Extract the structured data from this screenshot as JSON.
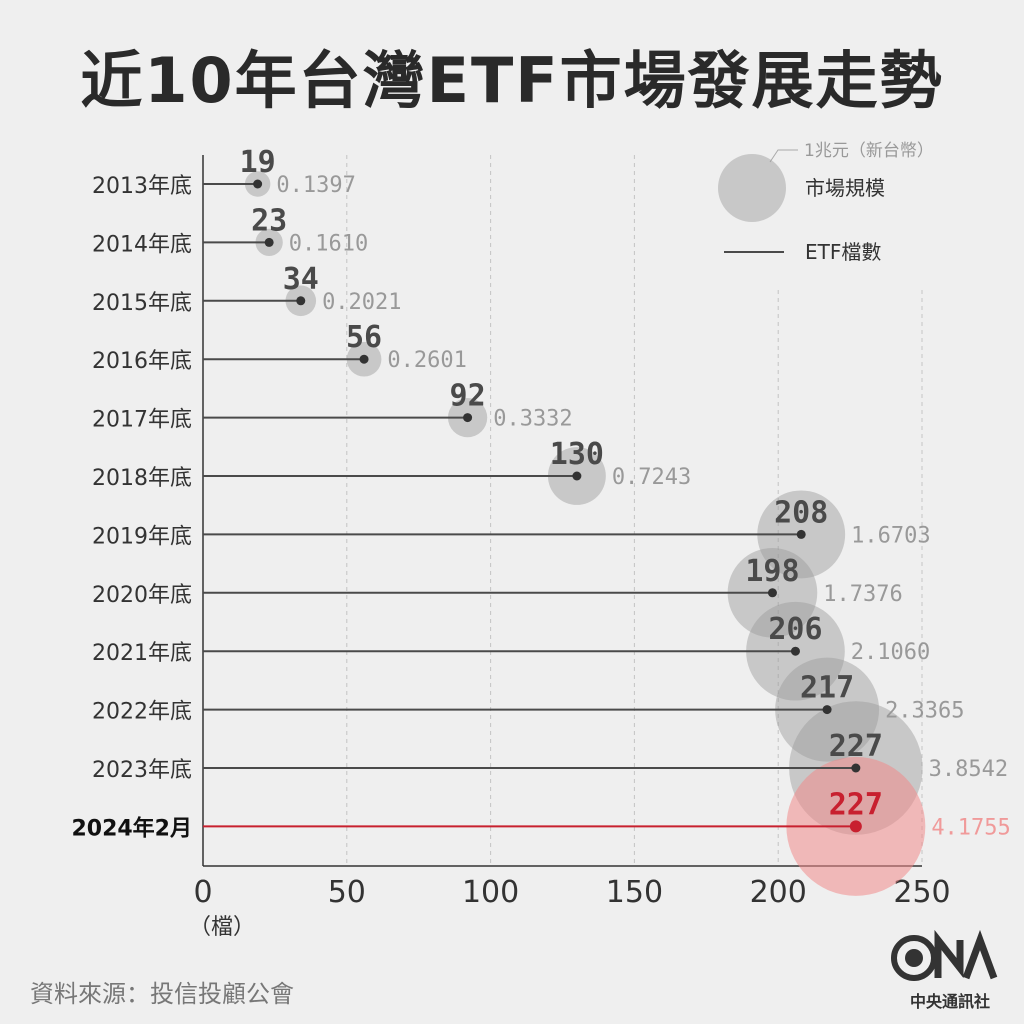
{
  "title": "近10年台灣ETF市場發展走勢",
  "source": "資料來源：投信投顧公會",
  "logo": {
    "text": "中央通訊社",
    "icon": "cna-logo"
  },
  "legend": {
    "size_note": "1兆元（新台幣）",
    "bubble_label": "市場規模",
    "line_label": "ETF檔數"
  },
  "colors": {
    "bubble": "#9a9a9a",
    "line": "#4a4a4a",
    "highlight": "#c8202f",
    "highlight_bubble": "#f08a8a",
    "highlight_value": "#f09a9a",
    "value_text": "#999999",
    "count_text": "#4a4a4a"
  },
  "chart_data": {
    "type": "bubble-lollipop",
    "title": "近10年台灣ETF市場發展走勢",
    "xlabel": "（檔）",
    "xlim": [
      0,
      250
    ],
    "xticks": [
      "0",
      "50",
      "100",
      "150",
      "200",
      "250"
    ],
    "categories": [
      "2013年底",
      "2014年底",
      "2015年底",
      "2016年底",
      "2017年底",
      "2018年底",
      "2019年底",
      "2020年底",
      "2021年底",
      "2022年底",
      "2023年底",
      "2024年2月"
    ],
    "series": [
      {
        "name": "ETF檔數",
        "values": [
          19,
          23,
          34,
          56,
          92,
          130,
          208,
          198,
          206,
          217,
          227,
          227
        ]
      },
      {
        "name": "市場規模",
        "values": [
          0.1397,
          0.161,
          0.2021,
          0.2601,
          0.3332,
          0.7243,
          1.6703,
          1.7376,
          2.106,
          2.3365,
          3.8542,
          4.1755
        ]
      }
    ],
    "value_labels": [
      "0.1397",
      "0.1610",
      "0.2021",
      "0.2601",
      "0.3332",
      "0.7243",
      "1.6703",
      "1.7376",
      "2.1060",
      "2.3365",
      "3.8542",
      "4.1755"
    ],
    "highlight_index": 11,
    "grid": true
  }
}
